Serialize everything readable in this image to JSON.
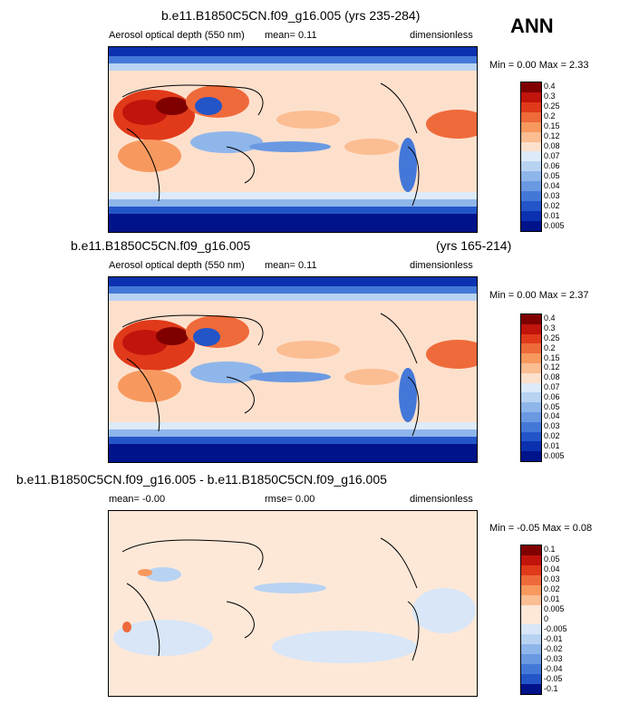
{
  "season": "ANN",
  "panels": [
    {
      "title": "b.e11.B1850C5CN.f09_g16.005 (yrs 235-284)",
      "title_right": "",
      "variable": "Aerosol optical depth (550 nm)",
      "stat": "mean=  0.11",
      "units": "dimensionless",
      "minmax": "Min =  0.00 Max =  2.33",
      "levels": [
        "0.4",
        "0.3",
        "0.25",
        "0.2",
        "0.15",
        "0.12",
        "0.08",
        "0.07",
        "0.06",
        "0.05",
        "0.04",
        "0.03",
        "0.02",
        "0.01",
        "0.005"
      ],
      "colors": [
        "#800000",
        "#c0140c",
        "#e03a1a",
        "#ef6a3a",
        "#f7995f",
        "#fbbd92",
        "#fde0cc",
        "#ddeaf8",
        "#b8d3f2",
        "#8fb6ea",
        "#6a99e2",
        "#4478d8",
        "#2355c8",
        "#0b31b0",
        "#00138a"
      ]
    },
    {
      "title": "b.e11.B1850C5CN.f09_g16.005",
      "title_right": "(yrs 165-214)",
      "variable": "Aerosol optical depth (550 nm)",
      "stat": "mean=  0.11",
      "units": "dimensionless",
      "minmax": "Min =  0.00 Max =  2.37",
      "levels": [
        "0.4",
        "0.3",
        "0.25",
        "0.2",
        "0.15",
        "0.12",
        "0.08",
        "0.07",
        "0.06",
        "0.05",
        "0.04",
        "0.03",
        "0.02",
        "0.01",
        "0.005"
      ],
      "colors": [
        "#800000",
        "#c0140c",
        "#e03a1a",
        "#ef6a3a",
        "#f7995f",
        "#fbbd92",
        "#fde0cc",
        "#ddeaf8",
        "#b8d3f2",
        "#8fb6ea",
        "#6a99e2",
        "#4478d8",
        "#2355c8",
        "#0b31b0",
        "#00138a"
      ]
    },
    {
      "title": "b.e11.B1850C5CN.f09_g16.005 - b.e11.B1850C5CN.f09_g16.005",
      "title_right": "",
      "variable": "mean= -0.00",
      "stat": "rmse=  0.00",
      "units": "dimensionless",
      "minmax": "Min = -0.05 Max =  0.08",
      "levels": [
        "0.1",
        "0.05",
        "0.04",
        "0.03",
        "0.02",
        "0.01",
        "0.005",
        "0",
        "-0.005",
        "-0.01",
        "-0.02",
        "-0.03",
        "-0.04",
        "-0.05",
        "-0.1"
      ],
      "colors": [
        "#800000",
        "#c0140c",
        "#e03a1a",
        "#ef6a3a",
        "#f7995f",
        "#fbbd92",
        "#fde8d8",
        "#fde8d8",
        "#d8e6f7",
        "#b8d3f2",
        "#8fb6ea",
        "#6a99e2",
        "#4478d8",
        "#2355c8",
        "#00138a"
      ]
    }
  ]
}
